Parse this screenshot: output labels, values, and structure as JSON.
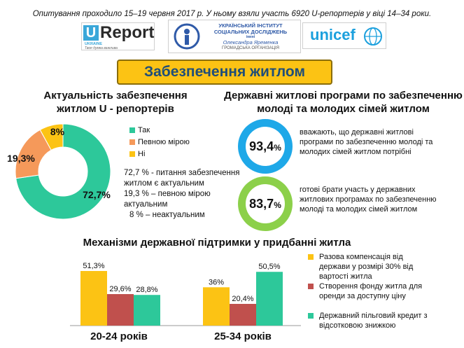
{
  "survey_note": "Опитування проходило 15–19  червня 2017 р. У ньому взяли участь 6920  U-репортерів  у віці 14–34 роки.",
  "logos": {
    "ureport": {
      "mark": "U",
      "word": "Report",
      "country": "UKRAINE",
      "tagline": "Твоя думка важлива"
    },
    "institute": {
      "line1": "УКРАЇНСЬКИЙ ІНСТИТУТ",
      "line2": "СОЦІАЛЬНИХ ДОСЛІДЖЕНЬ",
      "line3": "імені",
      "line4": "Олександра Яременка",
      "line5": "ГРОМАДСЬКА  ОРГАНІЗАЦІЯ"
    },
    "unicef": {
      "word": "unicef"
    }
  },
  "title": "Забезпечення житлом",
  "relevance": {
    "heading_line1": "Актуальність забезпечення",
    "heading_line2": "житлом U - репортерів",
    "stat_lines": [
      "72,7 % - питання забезпечення",
      "житлом є актуальним",
      "19,3 % – певною мірою",
      "актуальним",
      "8 % – неактуальним"
    ]
  },
  "programs": {
    "heading_line1": "Державні житлові програми по забезпеченню",
    "heading_line2": "молоді та молодих сімей житлом",
    "items": [
      {
        "value": "93,4",
        "unit": "%",
        "color": "#1ea8e8",
        "lines": [
          "вважають, що державні житлові",
          "програми по забезпеченню молоді та",
          "молодих сімей житлом потрібні"
        ]
      },
      {
        "value": "83,7",
        "unit": "%",
        "color": "#8cd04a",
        "lines": [
          "готові брати участь у державних",
          "житлових програмах по забезпеченню",
          "молоді та молодих сімей житлом"
        ]
      }
    ]
  },
  "support": {
    "heading": "Механізми державної підтримки у придбанні житла"
  },
  "chart_data": [
    {
      "type": "pie",
      "labels": [
        "Так",
        "Певною мірою",
        "Ні"
      ],
      "values": [
        72.7,
        19.3,
        8
      ],
      "data_labels": [
        "72,7%",
        "19,3%",
        "8%"
      ],
      "colors": [
        "#2dc89a",
        "#f5995a",
        "#fcc314"
      ],
      "legend": "right"
    },
    {
      "type": "bar",
      "categories": [
        "20-24 років",
        "25-34 років"
      ],
      "series": [
        {
          "name": "Разова компенсація від держави у розмірі 30% від вартості житла",
          "values": [
            51.3,
            36
          ],
          "labels": [
            "51,3%",
            "36%"
          ],
          "color": "#fcc314",
          "legend_lines": [
            "Разова компенсація від",
            "держави у розмірі 30% від",
            "вартості житла"
          ]
        },
        {
          "name": "Створення фонду житла для оренди за доступну ціну",
          "values": [
            29.6,
            20.4
          ],
          "labels": [
            "29,6%",
            "20,4%"
          ],
          "color": "#c0504d",
          "legend_lines": [
            "Створення фонду житла для",
            "оренди за доступну ціну"
          ]
        },
        {
          "name": "Державний пільговий кредит з відсотковою знижкою",
          "values": [
            28.8,
            50.5
          ],
          "labels": [
            "28,8%",
            "50,5%"
          ],
          "color": "#2dc89a",
          "legend_lines": [
            "Державний пільговий кредит з",
            "відсотковою знижкою"
          ]
        }
      ],
      "ylim": [
        0,
        60
      ],
      "legend": "right"
    }
  ]
}
